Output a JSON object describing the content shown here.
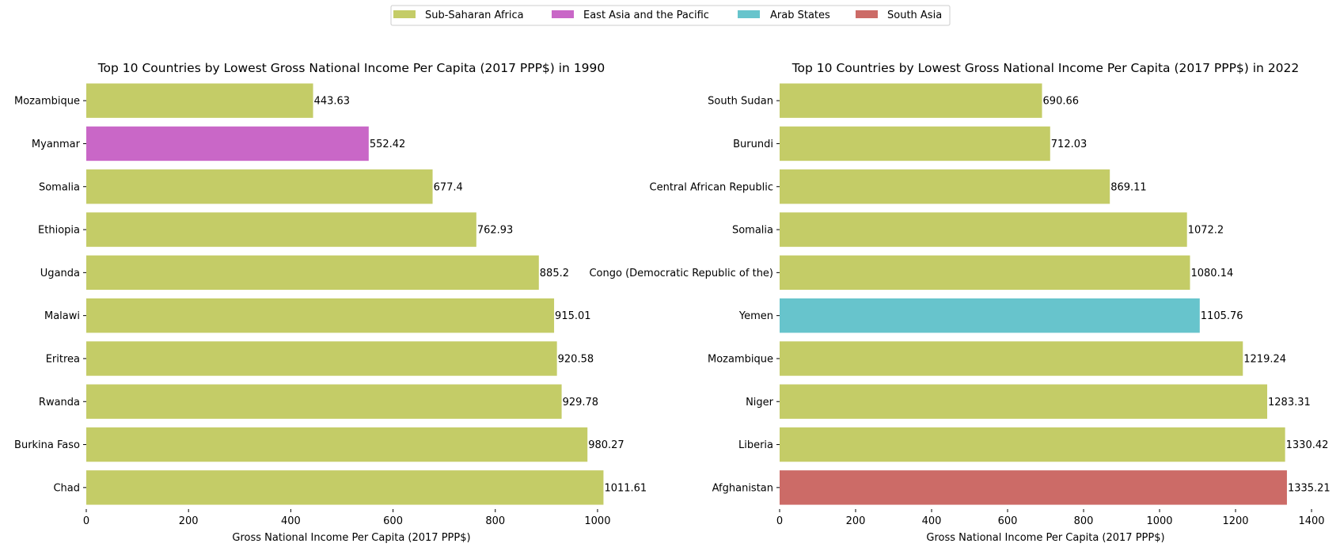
{
  "legend": {
    "placement": "top-center",
    "items": [
      {
        "label": "Sub-Saharan Africa",
        "color": "#c4cc67"
      },
      {
        "label": "East Asia and the Pacific",
        "color": "#c967c7"
      },
      {
        "label": "Arab States",
        "color": "#67c4cc"
      },
      {
        "label": "South Asia",
        "color": "#cc6b67"
      }
    ]
  },
  "chart_data": [
    {
      "type": "bar",
      "orientation": "horizontal",
      "title": "Top 10 Countries by Lowest Gross National Income Per Capita (2017 PPP$) in 1990",
      "xlabel": "Gross National Income Per Capita (2017 PPP$)",
      "ylabel": "",
      "xlim": [
        0,
        1062
      ],
      "xticks": [
        0,
        200,
        400,
        600,
        800,
        1000
      ],
      "grid": false,
      "categories": [
        "Mozambique",
        "Myanmar",
        "Somalia",
        "Ethiopia",
        "Uganda",
        "Malawi",
        "Eritrea",
        "Rwanda",
        "Burkina Faso",
        "Chad"
      ],
      "values": [
        443.63,
        552.42,
        677.4,
        762.93,
        885.2,
        915.01,
        920.58,
        929.78,
        980.27,
        1011.61
      ],
      "value_labels": [
        "443.63",
        "552.42",
        "677.4",
        "762.93",
        "885.2",
        "915.01",
        "920.58",
        "929.78",
        "980.27",
        "1011.61"
      ],
      "regions": [
        "Sub-Saharan Africa",
        "East Asia and the Pacific",
        "Sub-Saharan Africa",
        "Sub-Saharan Africa",
        "Sub-Saharan Africa",
        "Sub-Saharan Africa",
        "Sub-Saharan Africa",
        "Sub-Saharan Africa",
        "Sub-Saharan Africa",
        "Sub-Saharan Africa"
      ]
    },
    {
      "type": "bar",
      "orientation": "horizontal",
      "title": "Top 10 Countries by Lowest Gross National Income Per Capita (2017 PPP$) in 2022",
      "xlabel": "Gross National Income Per Capita (2017 PPP$)",
      "ylabel": "",
      "xlim": [
        0,
        1402
      ],
      "xticks": [
        0,
        200,
        400,
        600,
        800,
        1000,
        1200,
        1400
      ],
      "grid": false,
      "categories": [
        "South Sudan",
        "Burundi",
        "Central African Republic",
        "Somalia",
        "Congo (Democratic Republic of the)",
        "Yemen",
        "Mozambique",
        "Niger",
        "Liberia",
        "Afghanistan"
      ],
      "values": [
        690.66,
        712.03,
        869.11,
        1072.2,
        1080.14,
        1105.76,
        1219.24,
        1283.31,
        1330.42,
        1335.21
      ],
      "value_labels": [
        "690.66",
        "712.03",
        "869.11",
        "1072.2",
        "1080.14",
        "1105.76",
        "1219.24",
        "1283.31",
        "1330.42",
        "1335.21"
      ],
      "regions": [
        "Sub-Saharan Africa",
        "Sub-Saharan Africa",
        "Sub-Saharan Africa",
        "Sub-Saharan Africa",
        "Sub-Saharan Africa",
        "Arab States",
        "Sub-Saharan Africa",
        "Sub-Saharan Africa",
        "Sub-Saharan Africa",
        "South Asia"
      ]
    }
  ]
}
